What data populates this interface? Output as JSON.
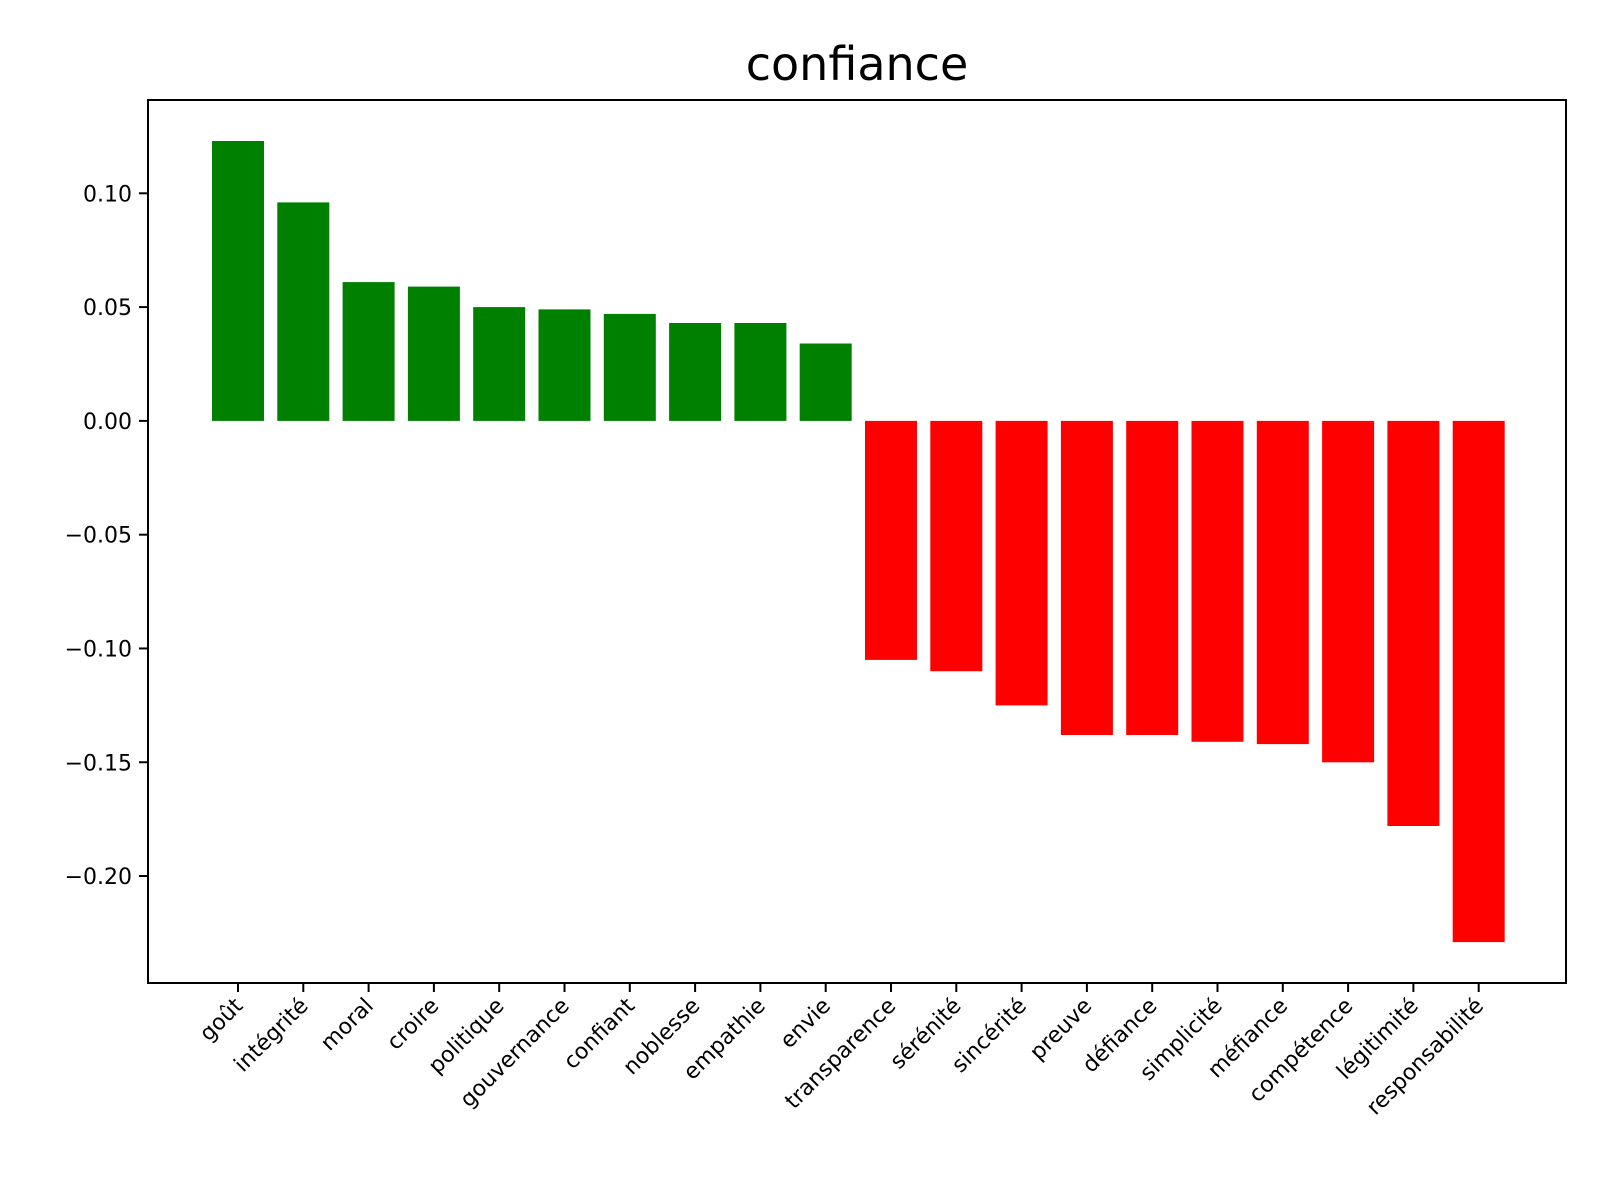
{
  "chart_data": {
    "type": "bar",
    "title": "confiance",
    "xlabel": "",
    "ylabel": "",
    "categories": [
      "goût",
      "intégrité",
      "moral",
      "croire",
      "politique",
      "gouvernance",
      "confiant",
      "noblesse",
      "empathie",
      "envie",
      "transparence",
      "sérénité",
      "sincérité",
      "preuve",
      "défiance",
      "simplicité",
      "méfiance",
      "compétence",
      "légitimité",
      "responsabilité"
    ],
    "values": [
      0.123,
      0.096,
      0.061,
      0.059,
      0.05,
      0.049,
      0.047,
      0.043,
      0.043,
      0.034,
      -0.105,
      -0.11,
      -0.125,
      -0.138,
      -0.138,
      -0.141,
      -0.142,
      -0.15,
      -0.178,
      -0.229
    ],
    "ylim": [
      -0.247,
      0.141
    ],
    "yticks": [
      0.1,
      0.05,
      0.0,
      -0.05,
      -0.1,
      -0.15,
      -0.2
    ],
    "ytick_labels": [
      "0.10",
      "0.05",
      "0.00",
      "−0.05",
      "−0.10",
      "−0.15",
      "−0.20"
    ],
    "colors": {
      "positive": "#008000",
      "negative": "#ff0000"
    },
    "grid": false,
    "legend": "none"
  }
}
